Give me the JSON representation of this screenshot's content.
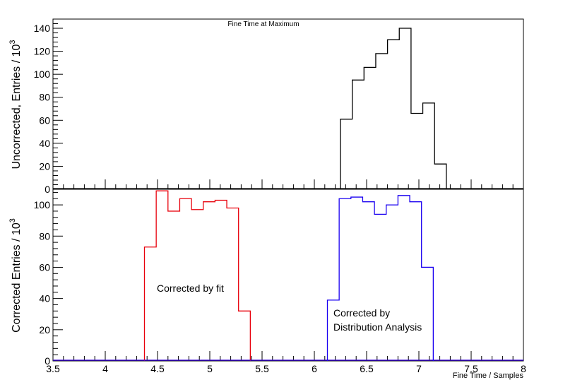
{
  "chart_data": [
    {
      "type": "histogram",
      "title": "Fine Time at Maximum",
      "ylabel": "Uncorrected, Entries / 10^3",
      "ylabel_main": "Uncorrected, Entries / 10",
      "ylabel_sup": "3",
      "xlim": [
        3.5,
        8
      ],
      "ylim": [
        0,
        148
      ],
      "yticks": [
        0,
        20,
        40,
        60,
        80,
        100,
        120,
        140
      ],
      "grid": false,
      "series": [
        {
          "color": "#000000",
          "bin_width": 0.1125,
          "x_start": 6.25,
          "values": [
            61,
            95,
            106,
            118,
            130,
            140,
            66,
            75,
            22
          ]
        }
      ]
    },
    {
      "type": "histogram",
      "ylabel": "Corrected Entries / 10^3",
      "ylabel_main": "Corrected Entries / 10",
      "ylabel_sup": "3",
      "xlabel": "Fine Time / Samples",
      "xlim": [
        3.5,
        8
      ],
      "ylim": [
        0,
        110
      ],
      "xticks": [
        "3.5",
        "4",
        "4.5",
        "5",
        "5.5",
        "6",
        "6.5",
        "7",
        "7.5",
        "8"
      ],
      "yticks": [
        0,
        20,
        40,
        60,
        80,
        100
      ],
      "grid": false,
      "series": [
        {
          "color": "#e8000b",
          "bin_width": 0.1125,
          "x_start": 4.375,
          "values": [
            73,
            109,
            96,
            104,
            97,
            102,
            103,
            98,
            32
          ]
        },
        {
          "color": "#1a00f0",
          "bin_width": 0.1125,
          "x_start": 6.125,
          "values": [
            39,
            104,
            105,
            102,
            94,
            100,
            106,
            102,
            60
          ]
        }
      ],
      "annotations": [
        {
          "text": "Corrected by fit",
          "x": 4.5,
          "y": 45
        },
        {
          "text": "Corrected by",
          "x": 6.18,
          "y": 30
        },
        {
          "text": "Distribution Analysis",
          "x": 6.18,
          "y": 21
        }
      ]
    }
  ]
}
